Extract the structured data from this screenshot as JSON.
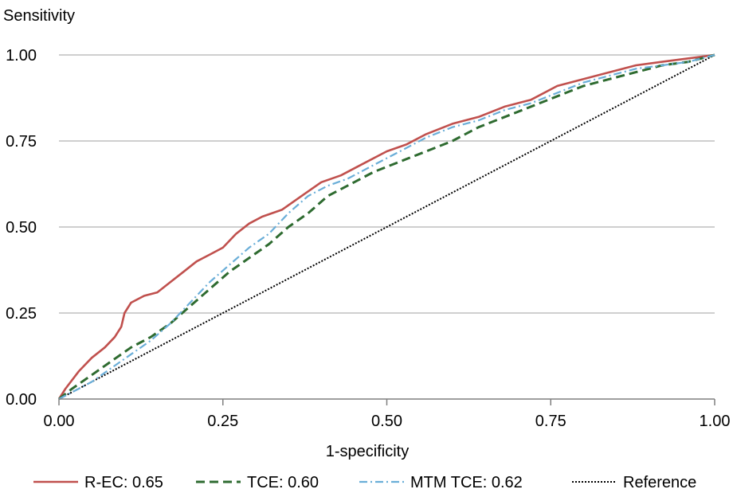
{
  "chart_data": {
    "type": "line",
    "title": "",
    "xlabel": "1-specificity",
    "ylabel": "Sensitivity",
    "xlim": [
      0,
      1
    ],
    "ylim": [
      0,
      1
    ],
    "x_ticks": [
      "0.00",
      "0.25",
      "0.50",
      "0.75",
      "1.00"
    ],
    "y_ticks": [
      "0.00",
      "0.25",
      "0.50",
      "0.75",
      "1.00"
    ],
    "grid": "horizontal",
    "legend_position": "bottom",
    "series": [
      {
        "name": "R-EC: 0.65",
        "color": "#C0504D",
        "dash": "solid",
        "points": [
          [
            0,
            0
          ],
          [
            0.01,
            0.03
          ],
          [
            0.03,
            0.08
          ],
          [
            0.05,
            0.12
          ],
          [
            0.07,
            0.15
          ],
          [
            0.085,
            0.18
          ],
          [
            0.095,
            0.21
          ],
          [
            0.1,
            0.25
          ],
          [
            0.11,
            0.28
          ],
          [
            0.13,
            0.3
          ],
          [
            0.15,
            0.31
          ],
          [
            0.17,
            0.34
          ],
          [
            0.19,
            0.37
          ],
          [
            0.21,
            0.4
          ],
          [
            0.23,
            0.42
          ],
          [
            0.25,
            0.44
          ],
          [
            0.27,
            0.48
          ],
          [
            0.29,
            0.51
          ],
          [
            0.31,
            0.53
          ],
          [
            0.34,
            0.55
          ],
          [
            0.37,
            0.59
          ],
          [
            0.4,
            0.63
          ],
          [
            0.43,
            0.65
          ],
          [
            0.46,
            0.68
          ],
          [
            0.5,
            0.72
          ],
          [
            0.53,
            0.74
          ],
          [
            0.56,
            0.77
          ],
          [
            0.6,
            0.8
          ],
          [
            0.64,
            0.82
          ],
          [
            0.68,
            0.85
          ],
          [
            0.72,
            0.87
          ],
          [
            0.76,
            0.91
          ],
          [
            0.8,
            0.93
          ],
          [
            0.84,
            0.95
          ],
          [
            0.88,
            0.97
          ],
          [
            0.92,
            0.98
          ],
          [
            0.96,
            0.99
          ],
          [
            1.0,
            1.0
          ]
        ]
      },
      {
        "name": "TCE: 0.60",
        "color": "#2E6B30",
        "dash": "dashed",
        "points": [
          [
            0,
            0
          ],
          [
            0.02,
            0.03
          ],
          [
            0.05,
            0.07
          ],
          [
            0.08,
            0.11
          ],
          [
            0.11,
            0.15
          ],
          [
            0.14,
            0.18
          ],
          [
            0.17,
            0.22
          ],
          [
            0.2,
            0.27
          ],
          [
            0.23,
            0.32
          ],
          [
            0.26,
            0.37
          ],
          [
            0.29,
            0.41
          ],
          [
            0.32,
            0.45
          ],
          [
            0.35,
            0.5
          ],
          [
            0.38,
            0.54
          ],
          [
            0.41,
            0.59
          ],
          [
            0.44,
            0.62
          ],
          [
            0.48,
            0.66
          ],
          [
            0.52,
            0.69
          ],
          [
            0.56,
            0.72
          ],
          [
            0.6,
            0.75
          ],
          [
            0.64,
            0.79
          ],
          [
            0.68,
            0.82
          ],
          [
            0.72,
            0.85
          ],
          [
            0.76,
            0.88
          ],
          [
            0.8,
            0.91
          ],
          [
            0.84,
            0.93
          ],
          [
            0.88,
            0.95
          ],
          [
            0.92,
            0.97
          ],
          [
            0.96,
            0.98
          ],
          [
            1.0,
            1.0
          ]
        ]
      },
      {
        "name": "MTM TCE: 0.62",
        "color": "#6AAED8",
        "dash": "dashdot",
        "points": [
          [
            0,
            0
          ],
          [
            0.02,
            0.02
          ],
          [
            0.05,
            0.05
          ],
          [
            0.08,
            0.09
          ],
          [
            0.11,
            0.13
          ],
          [
            0.14,
            0.17
          ],
          [
            0.17,
            0.22
          ],
          [
            0.2,
            0.28
          ],
          [
            0.23,
            0.34
          ],
          [
            0.26,
            0.39
          ],
          [
            0.29,
            0.44
          ],
          [
            0.32,
            0.48
          ],
          [
            0.35,
            0.54
          ],
          [
            0.38,
            0.59
          ],
          [
            0.41,
            0.62
          ],
          [
            0.44,
            0.64
          ],
          [
            0.48,
            0.68
          ],
          [
            0.52,
            0.72
          ],
          [
            0.56,
            0.76
          ],
          [
            0.6,
            0.79
          ],
          [
            0.64,
            0.81
          ],
          [
            0.68,
            0.84
          ],
          [
            0.72,
            0.86
          ],
          [
            0.76,
            0.89
          ],
          [
            0.8,
            0.92
          ],
          [
            0.84,
            0.94
          ],
          [
            0.88,
            0.96
          ],
          [
            0.92,
            0.97
          ],
          [
            0.96,
            0.98
          ],
          [
            1.0,
            1.0
          ]
        ]
      },
      {
        "name": "Reference",
        "color": "#000000",
        "dash": "dotted",
        "points": [
          [
            0,
            0
          ],
          [
            1,
            1
          ]
        ]
      }
    ]
  }
}
